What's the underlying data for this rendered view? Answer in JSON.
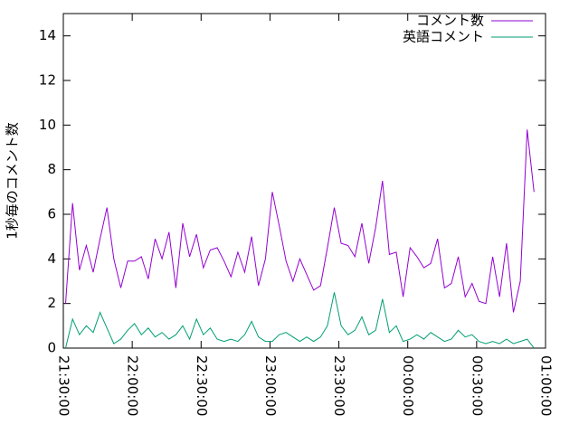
{
  "chart_data": {
    "type": "line",
    "y_label": "1秒毎のコメント数",
    "x": [
      "21:31:00",
      "21:34:00",
      "21:37:00",
      "21:40:00",
      "21:43:00",
      "21:46:00",
      "21:49:00",
      "21:52:00",
      "21:55:00",
      "21:58:00",
      "22:01:00",
      "22:04:00",
      "22:07:00",
      "22:10:00",
      "22:13:00",
      "22:16:00",
      "22:19:00",
      "22:22:00",
      "22:25:00",
      "22:28:00",
      "22:31:00",
      "22:34:00",
      "22:37:00",
      "22:40:00",
      "22:43:00",
      "22:46:00",
      "22:49:00",
      "22:52:00",
      "22:55:00",
      "22:58:00",
      "23:01:00",
      "23:04:00",
      "23:07:00",
      "23:10:00",
      "23:13:00",
      "23:16:00",
      "23:19:00",
      "23:22:00",
      "23:25:00",
      "23:28:00",
      "23:31:00",
      "23:34:00",
      "23:37:00",
      "23:40:00",
      "23:43:00",
      "23:46:00",
      "23:49:00",
      "23:52:00",
      "23:55:00",
      "23:58:00",
      "00:01:00",
      "00:04:00",
      "00:07:00",
      "00:10:00",
      "00:13:00",
      "00:16:00",
      "00:19:00",
      "00:22:00",
      "00:25:00",
      "00:28:00",
      "00:31:00",
      "00:34:00",
      "00:37:00",
      "00:40:00",
      "00:43:00",
      "00:46:00",
      "00:49:00",
      "00:52:00",
      "00:55:00"
    ],
    "series": [
      {
        "name": "コメント数",
        "color": "#9400d3",
        "values": [
          2.0,
          6.5,
          3.5,
          4.6,
          3.4,
          4.9,
          6.3,
          4.0,
          2.7,
          3.9,
          3.9,
          4.1,
          3.1,
          4.9,
          4.0,
          5.2,
          2.7,
          5.6,
          4.1,
          5.1,
          3.6,
          4.4,
          4.5,
          3.9,
          3.2,
          4.3,
          3.4,
          5.0,
          2.8,
          4.0,
          7.0,
          5.5,
          3.9,
          3.0,
          4.0,
          3.3,
          2.6,
          2.8,
          4.5,
          6.3,
          4.7,
          4.6,
          4.1,
          5.6,
          3.8,
          5.4,
          7.5,
          4.2,
          4.3,
          2.3,
          4.5,
          4.1,
          3.6,
          3.8,
          4.9,
          2.7,
          2.9,
          4.1,
          2.3,
          2.9,
          2.1,
          2.0,
          4.1,
          2.3,
          4.7,
          1.6,
          3.0,
          9.8,
          7.0
        ]
      },
      {
        "name": "英語コメント",
        "color": "#009e73",
        "values": [
          0.0,
          1.3,
          0.6,
          1.0,
          0.7,
          1.6,
          0.9,
          0.2,
          0.4,
          0.8,
          1.1,
          0.6,
          0.9,
          0.5,
          0.7,
          0.4,
          0.6,
          1.0,
          0.4,
          1.3,
          0.6,
          0.9,
          0.4,
          0.3,
          0.4,
          0.3,
          0.6,
          1.2,
          0.5,
          0.3,
          0.3,
          0.6,
          0.7,
          0.5,
          0.3,
          0.5,
          0.3,
          0.5,
          1.0,
          2.5,
          1.0,
          0.6,
          0.8,
          1.4,
          0.6,
          0.8,
          2.2,
          0.7,
          1.0,
          0.3,
          0.4,
          0.6,
          0.4,
          0.7,
          0.5,
          0.3,
          0.4,
          0.8,
          0.5,
          0.6,
          0.3,
          0.2,
          0.3,
          0.2,
          0.4,
          0.2,
          0.3,
          0.4,
          0.0
        ]
      }
    ],
    "xlim": [
      "21:30:00",
      "01:00:00"
    ],
    "xticks": [
      "21:30:00",
      "22:00:00",
      "22:30:00",
      "23:00:00",
      "23:30:00",
      "00:00:00",
      "00:30:00",
      "01:00:00"
    ],
    "ylim": [
      0,
      15
    ],
    "yticks": [
      0,
      2,
      4,
      6,
      8,
      10,
      12,
      14
    ],
    "legend": "top-right"
  }
}
